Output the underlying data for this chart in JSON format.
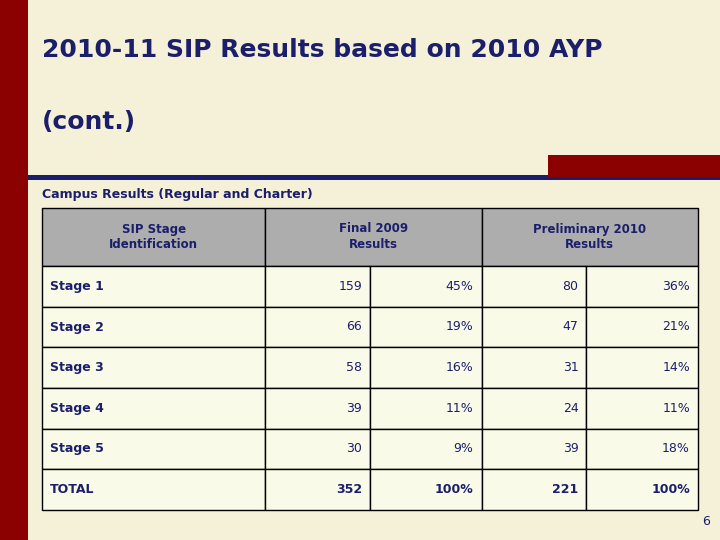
{
  "title_line1": "2010-11 SIP Results based on 2010 AYP",
  "title_line2": "(cont.)",
  "subtitle": "Campus Results (Regular and Charter)",
  "background_color": "#F5F0D8",
  "title_color": "#1B1F6B",
  "subtitle_color": "#1B1F6B",
  "header_bg": "#ADADAD",
  "header_text_color": "#1B1F6B",
  "row_bg": "#FAFAE8",
  "border_color": "#000000",
  "left_bar_color": "#8B0000",
  "top_bar_color": "#8B0000",
  "accent_line_color": "#1B1F6B",
  "page_number": "6",
  "rows": [
    {
      "label": "Stage 1",
      "f2009_n": "159",
      "f2009_pct": "45%",
      "p2010_n": "80",
      "p2010_pct": "36%",
      "bold": false
    },
    {
      "label": "Stage 2",
      "f2009_n": "66",
      "f2009_pct": "19%",
      "p2010_n": "47",
      "p2010_pct": "21%",
      "bold": false
    },
    {
      "label": "Stage 3",
      "f2009_n": "58",
      "f2009_pct": "16%",
      "p2010_n": "31",
      "p2010_pct": "14%",
      "bold": false
    },
    {
      "label": "Stage 4",
      "f2009_n": "39",
      "f2009_pct": "11%",
      "p2010_n": "24",
      "p2010_pct": "11%",
      "bold": false
    },
    {
      "label": "Stage 5",
      "f2009_n": "30",
      "f2009_pct": "9%",
      "p2010_n": "39",
      "p2010_pct": "18%",
      "bold": false
    },
    {
      "label": "TOTAL",
      "f2009_n": "352",
      "f2009_pct": "100%",
      "p2010_n": "221",
      "p2010_pct": "100%",
      "bold": true
    }
  ]
}
